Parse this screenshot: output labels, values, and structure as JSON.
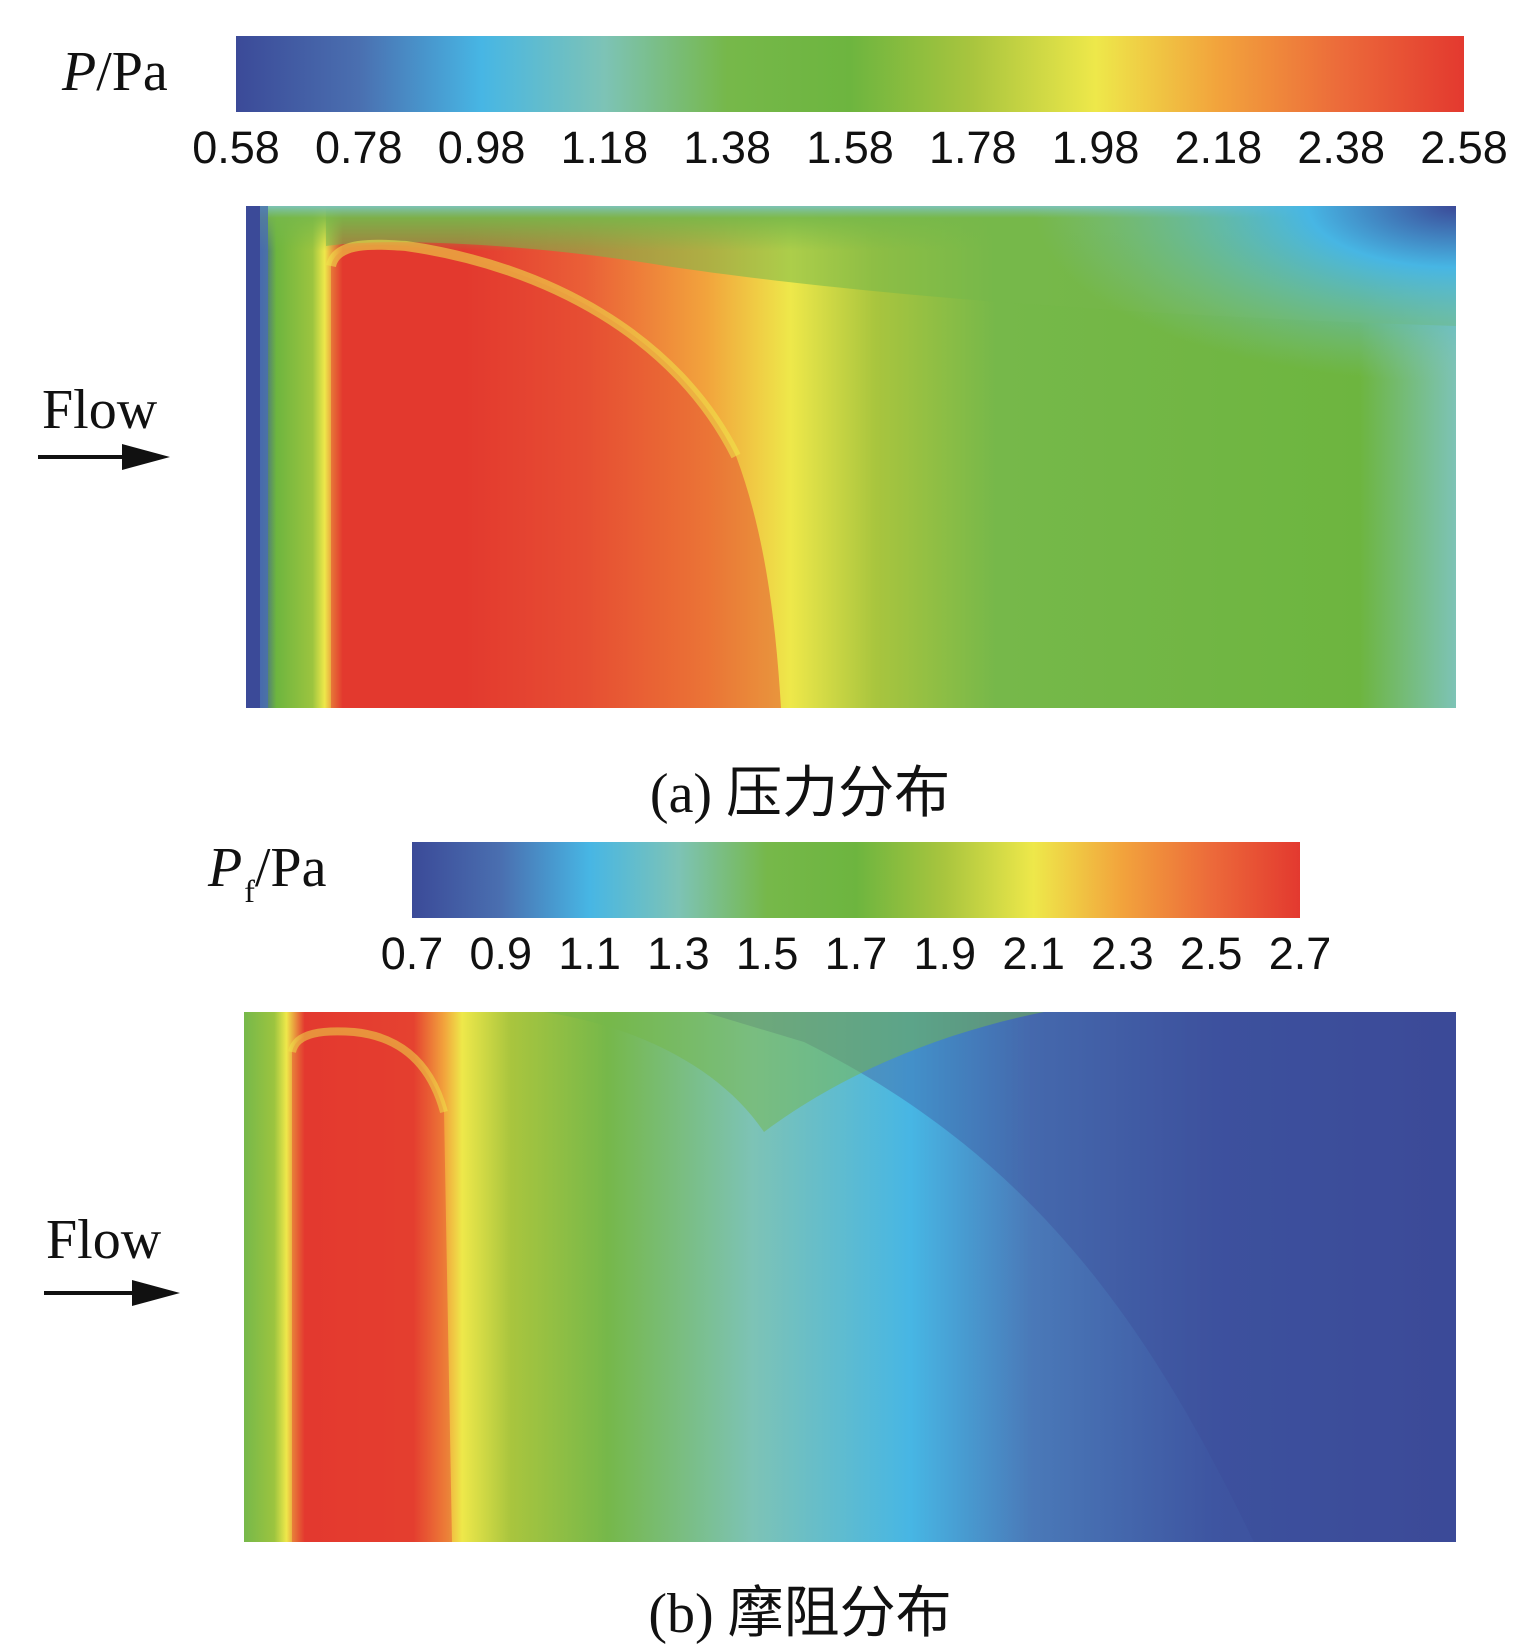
{
  "chart_data": [
    {
      "type": "heatmap",
      "caption": "(a) 压力分布",
      "colorbar": {
        "label_symbol": "P",
        "label_subscript": "",
        "label_unit": "/Pa",
        "ticks": [
          "0.58",
          "0.78",
          "0.98",
          "1.18",
          "1.38",
          "1.58",
          "1.78",
          "1.98",
          "2.18",
          "2.38",
          "2.58"
        ],
        "range": [
          0.58,
          2.58
        ],
        "stops": [
          "#3b4a98",
          "#4a6fb0",
          "#47b6e4",
          "#7dc3b6",
          "#76b84a",
          "#6db53f",
          "#a9c53e",
          "#eee84a",
          "#f2a33c",
          "#ec6a3a",
          "#e3392f"
        ]
      },
      "flow_label": "Flow",
      "description": "High-pressure region near leading edge (left), decreasing toward trailing edge"
    },
    {
      "type": "heatmap",
      "caption": "(b) 摩阻分布",
      "colorbar": {
        "label_symbol": "P",
        "label_subscript": "f",
        "label_unit": "/Pa",
        "ticks": [
          "0.7",
          "0.9",
          "1.1",
          "1.3",
          "1.5",
          "1.7",
          "1.9",
          "2.1",
          "2.3",
          "2.5",
          "2.7"
        ],
        "range": [
          0.7,
          2.7
        ],
        "stops": [
          "#3b4a98",
          "#4a6fb0",
          "#47b6e4",
          "#7dc3b6",
          "#76b84a",
          "#6db53f",
          "#a9c53e",
          "#eee84a",
          "#f2a33c",
          "#ec6a3a",
          "#e3392f"
        ]
      },
      "flow_label": "Flow",
      "description": "High friction strip near leading edge (left), falling to minimum toward trailing edge"
    }
  ]
}
